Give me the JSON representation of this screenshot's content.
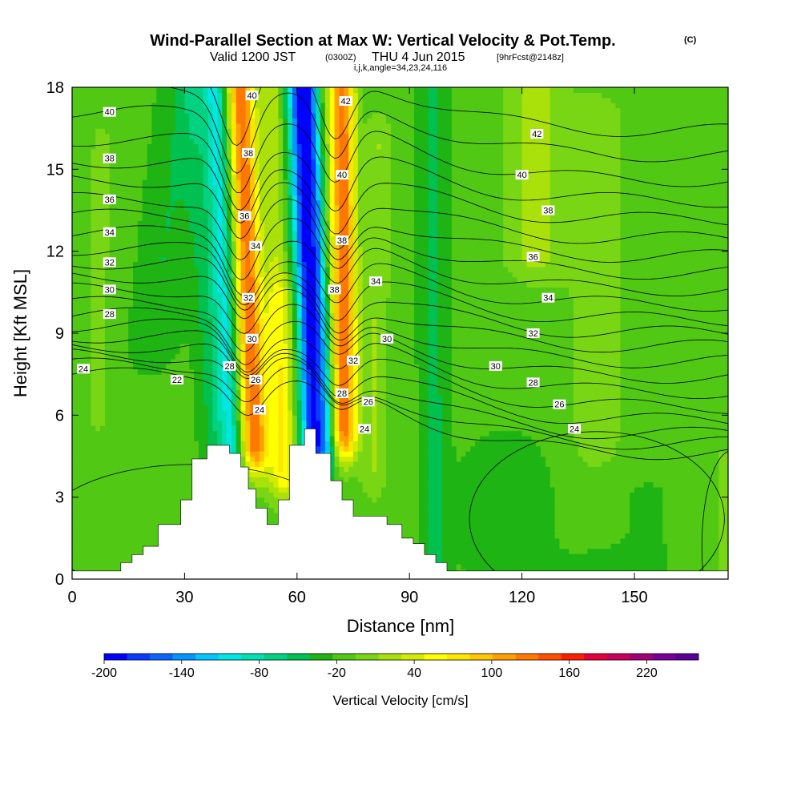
{
  "chart_data": {
    "type": "heatmap",
    "title": "Wind-Parallel Section at Max W: Vertical Velocity & Pot.Temp.",
    "title_mark": "(C)",
    "subtitle_parts": [
      "Valid 1200 JST",
      "(0300Z)",
      "THU 4 Jun 2015",
      "[9hrFcst@2148z]"
    ],
    "indices_line": "i,j,k,angle=34,23,24,116",
    "xlabel": "Distance [nm]",
    "ylabel": "Height [Kft MSL]",
    "xlim": [
      0,
      175
    ],
    "ylim": [
      0,
      18
    ],
    "x_ticks": [
      "0",
      "30",
      "60",
      "90",
      "120",
      "150"
    ],
    "x_tick_values": [
      0,
      30,
      60,
      90,
      120,
      150
    ],
    "y_ticks": [
      "0",
      "3",
      "6",
      "9",
      "12",
      "15",
      "18"
    ],
    "y_tick_values": [
      0,
      3,
      6,
      9,
      12,
      15,
      18
    ],
    "colorbar": {
      "label": "Vertical Velocity [cm/s]",
      "tick_labels": [
        "-200",
        "-140",
        "-80",
        "-20",
        "40",
        "100",
        "160",
        "220"
      ],
      "tick_values": [
        -200,
        -140,
        -80,
        -20,
        40,
        100,
        160,
        220
      ],
      "range": [
        -200,
        260
      ],
      "step": 20,
      "colors": [
        "#0000ff",
        "#0a3cff",
        "#0a64ff",
        "#0096ff",
        "#00c8ff",
        "#00e6e6",
        "#00e0b4",
        "#00d282",
        "#00c050",
        "#1eb414",
        "#50c814",
        "#78d614",
        "#aae10a",
        "#d2eb00",
        "#ffff00",
        "#ffe600",
        "#ffc800",
        "#ffa000",
        "#ff7800",
        "#ff5000",
        "#ff1e00",
        "#e6003c",
        "#c8005a",
        "#a00078",
        "#780096",
        "#5a0096"
      ]
    },
    "w_field": {
      "background_cm_s": 5,
      "features": [
        {
          "x_base": 6,
          "x_top": 8,
          "halfwidth": 5,
          "z0": 6,
          "z1": 16,
          "w": 18
        },
        {
          "x_base": 14,
          "x_top": 30,
          "halfwidth": 6,
          "z0": 9,
          "z1": 18,
          "w": -25
        },
        {
          "x_base": 40,
          "x_top": 32,
          "halfwidth": 3.5,
          "z0": 4.5,
          "z1": 18,
          "w": -28
        },
        {
          "x_base": 44,
          "x_top": 38,
          "halfwidth": 3.2,
          "z0": 4.5,
          "z1": 18,
          "w": -90
        },
        {
          "x_base": 50,
          "x_top": 45,
          "halfwidth": 3.6,
          "z0": 5,
          "z1": 18,
          "w": 170
        },
        {
          "x_base": 57,
          "x_top": 53,
          "halfwidth": 3.0,
          "z0": 4,
          "z1": 18,
          "w": 50
        },
        {
          "x_base": 56,
          "x_top": 56,
          "halfwidth": 5,
          "z0": 4,
          "z1": 10,
          "w": 45
        },
        {
          "x_base": 66,
          "x_top": 61,
          "halfwidth": 3.4,
          "z0": 5,
          "z1": 18,
          "w": -200
        },
        {
          "x_base": 70,
          "x_top": 64,
          "halfwidth": 2.0,
          "z0": 5,
          "z1": 18,
          "w": -60
        },
        {
          "x_base": 73,
          "x_top": 72,
          "halfwidth": 3.4,
          "z0": 5.5,
          "z1": 18,
          "w": 170
        },
        {
          "x_base": 80,
          "x_top": 82,
          "halfwidth": 3.5,
          "z0": 4,
          "z1": 16,
          "w": 35
        },
        {
          "x_base": 97,
          "x_top": 96,
          "halfwidth": 3.5,
          "z0": 0,
          "z1": 18,
          "w": -30
        },
        {
          "x_base": 123,
          "x_top": 123,
          "halfwidth": 8,
          "z0": 12,
          "z1": 18,
          "w": 42
        },
        {
          "x_base": 140,
          "x_top": 140,
          "halfwidth": 10,
          "z0": 2,
          "z1": 17,
          "w": 22
        },
        {
          "x_base": 116,
          "x_top": 116,
          "halfwidth": 10,
          "z0": 1,
          "z1": 4,
          "w": -22
        },
        {
          "x_base": 143,
          "x_top": 143,
          "halfwidth": 14,
          "z0": 0,
          "z1": 3,
          "w": -18
        },
        {
          "x_base": 174,
          "x_top": 174,
          "halfwidth": 3,
          "z0": 0,
          "z1": 4,
          "w": 22
        }
      ]
    },
    "terrain": {
      "x": [
        0,
        13,
        13,
        16,
        16,
        19,
        19,
        23,
        23,
        29,
        29,
        32,
        32,
        36,
        36,
        42,
        42,
        45,
        45,
        47,
        47,
        49,
        49,
        52,
        52,
        55,
        55,
        58,
        58,
        62,
        62,
        65,
        65,
        69,
        69,
        72,
        72,
        75,
        75,
        78,
        78,
        84,
        84,
        88,
        88,
        91,
        91,
        94,
        94,
        97,
        97,
        100,
        100,
        103,
        103,
        110,
        110,
        175
      ],
      "z": [
        0.3,
        0.3,
        0.6,
        0.6,
        0.9,
        0.9,
        1.2,
        1.2,
        2,
        2,
        2.9,
        2.9,
        4.4,
        4.4,
        4.9,
        4.9,
        4.6,
        4.6,
        4.1,
        4.1,
        3.3,
        3.3,
        2.6,
        2.6,
        2,
        2,
        2.9,
        2.9,
        4.9,
        4.9,
        5.5,
        5.5,
        4.6,
        4.6,
        3.6,
        3.6,
        2.9,
        2.9,
        2.3,
        2.3,
        2.3,
        2.3,
        2,
        2,
        1.5,
        1.5,
        1.3,
        1.3,
        0.9,
        0.9,
        0.6,
        0.6,
        0.3,
        0.3,
        0.3,
        0.3,
        0.3,
        0.3
      ]
    },
    "theta_contours": {
      "levels": [
        22,
        23,
        24,
        25,
        26,
        27,
        28,
        29,
        30,
        31,
        32,
        33,
        34,
        35,
        36,
        37,
        38,
        39,
        40,
        41,
        42
      ],
      "left_heights_kft": [
        7.5,
        7.85,
        8.2,
        8.55,
        8.9,
        9.3,
        9.7,
        10.1,
        10.6,
        11.1,
        11.6,
        12.1,
        12.7,
        13.3,
        13.9,
        14.6,
        15.3,
        16.1,
        17.1,
        18.0,
        19.0
      ],
      "right_heights_kft": [
        4.6,
        4.95,
        5.3,
        5.8,
        6.3,
        6.85,
        7.4,
        7.95,
        8.5,
        9.0,
        9.5,
        10.05,
        10.6,
        11.2,
        11.8,
        12.45,
        13.15,
        13.85,
        14.6,
        15.5,
        16.4
      ],
      "left_updraft_dip_kft": 4.5,
      "right_updraft_dip_kft": 4.5
    },
    "contour_labels": [
      {
        "text": "40",
        "x": 10,
        "z": 17.1
      },
      {
        "text": "38",
        "x": 10,
        "z": 15.4
      },
      {
        "text": "36",
        "x": 10,
        "z": 13.9
      },
      {
        "text": "34",
        "x": 10,
        "z": 12.7
      },
      {
        "text": "32",
        "x": 10,
        "z": 11.6
      },
      {
        "text": "30",
        "x": 10,
        "z": 10.6
      },
      {
        "text": "28",
        "x": 10,
        "z": 9.7
      },
      {
        "text": "24",
        "x": 3,
        "z": 7.7
      },
      {
        "text": "22",
        "x": 28,
        "z": 7.3
      },
      {
        "text": "28",
        "x": 42,
        "z": 7.8
      },
      {
        "text": "26",
        "x": 49,
        "z": 7.3
      },
      {
        "text": "24",
        "x": 50,
        "z": 6.2
      },
      {
        "text": "30",
        "x": 48,
        "z": 8.8
      },
      {
        "text": "32",
        "x": 47,
        "z": 10.3
      },
      {
        "text": "34",
        "x": 49,
        "z": 12.2
      },
      {
        "text": "36",
        "x": 46,
        "z": 13.3
      },
      {
        "text": "38",
        "x": 47,
        "z": 15.6
      },
      {
        "text": "40",
        "x": 48,
        "z": 17.7
      },
      {
        "text": "42",
        "x": 73,
        "z": 17.5
      },
      {
        "text": "40",
        "x": 72,
        "z": 14.8
      },
      {
        "text": "38",
        "x": 72,
        "z": 12.4
      },
      {
        "text": "38",
        "x": 70,
        "z": 10.6
      },
      {
        "text": "34",
        "x": 81,
        "z": 10.9
      },
      {
        "text": "30",
        "x": 84,
        "z": 8.8
      },
      {
        "text": "32",
        "x": 75,
        "z": 8.0
      },
      {
        "text": "28",
        "x": 72,
        "z": 6.8
      },
      {
        "text": "26",
        "x": 79,
        "z": 6.5
      },
      {
        "text": "24",
        "x": 78,
        "z": 5.5
      },
      {
        "text": "42",
        "x": 124,
        "z": 16.3
      },
      {
        "text": "40",
        "x": 120,
        "z": 14.8
      },
      {
        "text": "38",
        "x": 127,
        "z": 13.5
      },
      {
        "text": "36",
        "x": 123,
        "z": 11.8
      },
      {
        "text": "34",
        "x": 127,
        "z": 10.3
      },
      {
        "text": "32",
        "x": 123,
        "z": 9.0
      },
      {
        "text": "30",
        "x": 113,
        "z": 7.8
      },
      {
        "text": "28",
        "x": 123,
        "z": 7.2
      },
      {
        "text": "26",
        "x": 130,
        "z": 6.4
      },
      {
        "text": "24",
        "x": 134,
        "z": 5.5
      }
    ]
  }
}
